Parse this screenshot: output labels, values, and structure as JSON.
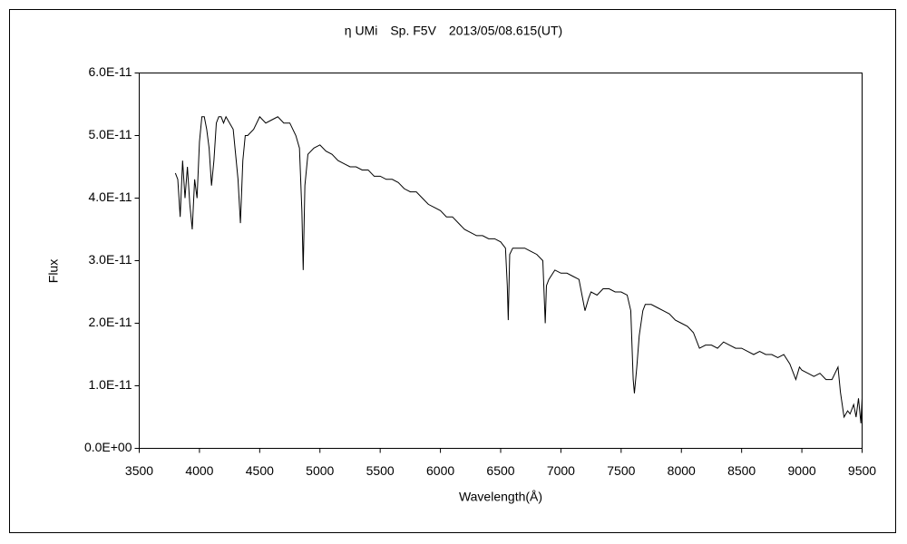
{
  "chart_data": {
    "type": "line",
    "title": "η UMi　Sp. F5V　2013/05/08.615(UT)",
    "xlabel": "Wavelength(Å)",
    "ylabel": "Flux",
    "color": "#000000",
    "xlim": [
      3500,
      9500
    ],
    "xticks": [
      3500,
      4000,
      4500,
      5000,
      5500,
      6000,
      6500,
      7000,
      7500,
      8000,
      8500,
      9000,
      9500
    ],
    "ylim": [
      0,
      6e-11
    ],
    "yticks": [
      {
        "value": 0,
        "label": "0.0E+00"
      },
      {
        "value": 1e-11,
        "label": "1.0E-11"
      },
      {
        "value": 2e-11,
        "label": "2.0E-11"
      },
      {
        "value": 3e-11,
        "label": "3.0E-11"
      },
      {
        "value": 4e-11,
        "label": "4.0E-11"
      },
      {
        "value": 5e-11,
        "label": "5.0E-11"
      },
      {
        "value": 6e-11,
        "label": "6.0E-11"
      }
    ],
    "x": [
      3800,
      3820,
      3840,
      3860,
      3880,
      3900,
      3920,
      3940,
      3960,
      3980,
      4000,
      4020,
      4040,
      4060,
      4080,
      4100,
      4120,
      4140,
      4160,
      4180,
      4200,
      4220,
      4250,
      4280,
      4300,
      4320,
      4340,
      4360,
      4380,
      4400,
      4450,
      4500,
      4550,
      4600,
      4650,
      4700,
      4750,
      4800,
      4830,
      4850,
      4861,
      4875,
      4900,
      4950,
      5000,
      5050,
      5100,
      5150,
      5200,
      5250,
      5300,
      5350,
      5400,
      5450,
      5500,
      5550,
      5600,
      5650,
      5700,
      5750,
      5800,
      5850,
      5900,
      5950,
      6000,
      6050,
      6100,
      6150,
      6200,
      6250,
      6300,
      6350,
      6400,
      6450,
      6500,
      6540,
      6555,
      6563,
      6575,
      6600,
      6650,
      6700,
      6750,
      6800,
      6850,
      6870,
      6880,
      6900,
      6950,
      7000,
      7050,
      7100,
      7150,
      7180,
      7200,
      7230,
      7250,
      7300,
      7350,
      7400,
      7450,
      7500,
      7550,
      7580,
      7600,
      7610,
      7630,
      7650,
      7680,
      7700,
      7750,
      7800,
      7850,
      7900,
      7950,
      8000,
      8050,
      8100,
      8150,
      8200,
      8250,
      8300,
      8350,
      8400,
      8450,
      8500,
      8550,
      8600,
      8650,
      8700,
      8750,
      8800,
      8850,
      8900,
      8950,
      8980,
      9000,
      9050,
      9100,
      9150,
      9200,
      9250,
      9300,
      9320,
      9350,
      9380,
      9400,
      9430,
      9450,
      9470,
      9490,
      9500
    ],
    "values": [
      4.4e-11,
      4.3e-11,
      3.7e-11,
      4.6e-11,
      4e-11,
      4.5e-11,
      3.9e-11,
      3.5e-11,
      4.3e-11,
      4e-11,
      4.9e-11,
      5.3e-11,
      5.3e-11,
      5.1e-11,
      4.8e-11,
      4.2e-11,
      4.6e-11,
      5.2e-11,
      5.3e-11,
      5.3e-11,
      5.2e-11,
      5.3e-11,
      5.2e-11,
      5.1e-11,
      4.7e-11,
      4.3e-11,
      3.6e-11,
      4.6e-11,
      5e-11,
      5e-11,
      5.1e-11,
      5.3e-11,
      5.2e-11,
      5.25e-11,
      5.3e-11,
      5.2e-11,
      5.2e-11,
      5e-11,
      4.8e-11,
      3.8e-11,
      2.85e-11,
      4.2e-11,
      4.7e-11,
      4.8e-11,
      4.85e-11,
      4.75e-11,
      4.7e-11,
      4.6e-11,
      4.55e-11,
      4.5e-11,
      4.5e-11,
      4.45e-11,
      4.45e-11,
      4.35e-11,
      4.35e-11,
      4.3e-11,
      4.3e-11,
      4.25e-11,
      4.15e-11,
      4.1e-11,
      4.1e-11,
      4e-11,
      3.9e-11,
      3.85e-11,
      3.8e-11,
      3.7e-11,
      3.7e-11,
      3.6e-11,
      3.5e-11,
      3.45e-11,
      3.4e-11,
      3.4e-11,
      3.35e-11,
      3.35e-11,
      3.3e-11,
      3.2e-11,
      2.6e-11,
      2.05e-11,
      3.1e-11,
      3.2e-11,
      3.2e-11,
      3.2e-11,
      3.15e-11,
      3.1e-11,
      3e-11,
      2e-11,
      2.6e-11,
      2.7e-11,
      2.85e-11,
      2.8e-11,
      2.8e-11,
      2.75e-11,
      2.7e-11,
      2.4e-11,
      2.2e-11,
      2.4e-11,
      2.5e-11,
      2.45e-11,
      2.55e-11,
      2.55e-11,
      2.5e-11,
      2.5e-11,
      2.45e-11,
      2.2e-11,
      1.1e-11,
      8.8e-12,
      1.3e-11,
      1.8e-11,
      2.2e-11,
      2.3e-11,
      2.3e-11,
      2.25e-11,
      2.2e-11,
      2.15e-11,
      2.05e-11,
      2e-11,
      1.95e-11,
      1.85e-11,
      1.6e-11,
      1.65e-11,
      1.65e-11,
      1.6e-11,
      1.7e-11,
      1.65e-11,
      1.6e-11,
      1.6e-11,
      1.55e-11,
      1.5e-11,
      1.55e-11,
      1.5e-11,
      1.5e-11,
      1.45e-11,
      1.5e-11,
      1.35e-11,
      1.1e-11,
      1.3e-11,
      1.25e-11,
      1.2e-11,
      1.15e-11,
      1.2e-11,
      1.1e-11,
      1.1e-11,
      1.3e-11,
      9e-12,
      5e-12,
      6e-12,
      5.5e-12,
      7e-12,
      5e-12,
      8e-12,
      4e-12,
      8e-12
    ]
  }
}
